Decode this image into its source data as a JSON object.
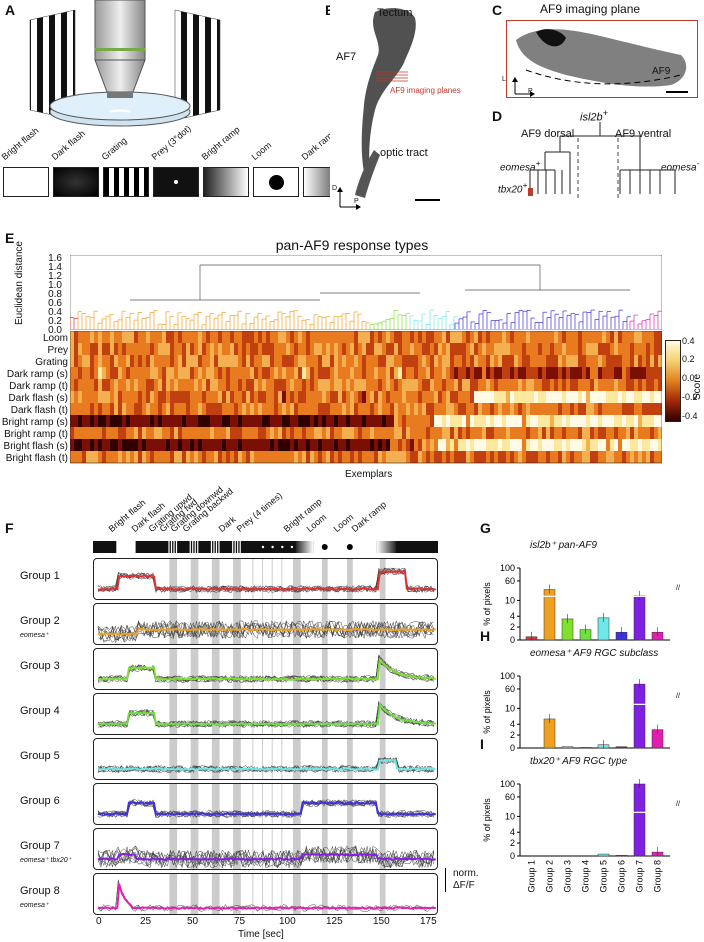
{
  "panels": {
    "A": {
      "label": "A",
      "stimuli": [
        "Bright flash",
        "Dark flash",
        "Grating",
        "Prey (3°dot)",
        "Bright ramp",
        "Loom",
        "Dark ramp"
      ]
    },
    "B": {
      "label": "B",
      "tectum": "Tectum",
      "af7": "AF7",
      "imaging": "AF9 imaging planes",
      "optic": "optic tract",
      "axis_d": "D",
      "axis_p": "P"
    },
    "C": {
      "label": "C",
      "title": "AF9 imaging plane",
      "af9": "AF9",
      "axis_l": "L",
      "axis_p": "P"
    },
    "D": {
      "label": "D",
      "top": "isl2b",
      "dorsal": "AF9 dorsal",
      "ventral": "AF9 ventral",
      "eomesa_pos": "eomesa",
      "eomesa_neg": "eomesa",
      "tbx20": "tbx20",
      "plus": "+",
      "minus": "-"
    },
    "E": {
      "label": "E",
      "title": "pan-AF9 response types",
      "ylabel": "Euclidean distance",
      "yticks": [
        "1.6",
        "1.4",
        "1.2",
        "1.0",
        "0.8",
        "0.6",
        "0.4",
        "0.2",
        "0.0"
      ],
      "rows": [
        "Loom",
        "Prey",
        "Grating",
        "Dark ramp (s)",
        "Dark ramp (t)",
        "Dark flash (s)",
        "Dark flash (t)",
        "Bright ramp (s)",
        "Bright ramp (t)",
        "Bright flash (s)",
        "Bright flash (t)"
      ],
      "xlabel": "Exemplars",
      "cbar_label": "Score",
      "cbar_ticks": [
        "0.4",
        "0.2",
        "0.0",
        "-0.2",
        "-0.4"
      ]
    },
    "F": {
      "label": "F",
      "stim_labels": [
        "Bright flash",
        "Dark flash",
        "Grating upwd",
        "Grating fwd",
        "Grating downwd",
        "Grating backwd",
        "Dark",
        "Prey (4 times)",
        "Bright ramp",
        "Loom",
        "Loom",
        "Dark ramp"
      ],
      "groups": [
        {
          "name": "Group 1",
          "sub": "",
          "color": "#e03030"
        },
        {
          "name": "Group 2",
          "sub": "eomesa⁺",
          "color": "#f0a020"
        },
        {
          "name": "Group 3",
          "sub": "",
          "color": "#80e030"
        },
        {
          "name": "Group 4",
          "sub": "",
          "color": "#70e040"
        },
        {
          "name": "Group 5",
          "sub": "",
          "color": "#70e8e8"
        },
        {
          "name": "Group 6",
          "sub": "",
          "color": "#4030e0"
        },
        {
          "name": "Group 7",
          "sub": "eomesa⁺ tbx20⁺",
          "color": "#8020e0"
        },
        {
          "name": "Group 8",
          "sub": "eomesa⁺",
          "color": "#e020b0"
        }
      ],
      "xticks": [
        "0",
        "25",
        "50",
        "75",
        "100",
        "125",
        "150",
        "175"
      ],
      "xlabel": "Time [sec]",
      "norm_label": "norm.",
      "df_label": "ΔF/F"
    },
    "G": {
      "label": "G",
      "title": "isl2b⁺ pan-AF9"
    },
    "H": {
      "label": "H",
      "title": "eomesa⁺ AF9 RGC subclass"
    },
    "I": {
      "label": "I",
      "title": "tbx20⁺ AF9 RGC type"
    }
  },
  "bar_ylabel": "% of pixels",
  "bar_yticks": [
    "100",
    "60",
    "10",
    "4",
    "2",
    "0"
  ],
  "bar_xcats": [
    "Group 1",
    "Group 2",
    "Group 3",
    "Group 4",
    "Group 5",
    "Group 6",
    "Group 7",
    "Group 8"
  ],
  "chart_data": [
    {
      "type": "bar",
      "title": "isl2b+ pan-AF9",
      "categories": [
        "Group 1",
        "Group 2",
        "Group 3",
        "Group 4",
        "Group 5",
        "Group 6",
        "Group 7",
        "Group 8"
      ],
      "values": [
        0.5,
        38,
        3.5,
        1.6,
        3.7,
        1.2,
        22,
        1.2
      ],
      "ylabel": "% of pixels",
      "ylim": [
        0,
        100
      ]
    },
    {
      "type": "bar",
      "title": "eomesa+ AF9 RGC subclass",
      "categories": [
        "Group 1",
        "Group 2",
        "Group 3",
        "Group 4",
        "Group 5",
        "Group 6",
        "Group 7",
        "Group 8"
      ],
      "values": [
        0,
        6,
        0.2,
        0.1,
        0.5,
        0.2,
        75,
        3
      ],
      "ylabel": "% of pixels",
      "ylim": [
        0,
        100
      ]
    },
    {
      "type": "bar",
      "title": "tbx20+ AF9 RGC type",
      "categories": [
        "Group 1",
        "Group 2",
        "Group 3",
        "Group 4",
        "Group 5",
        "Group 6",
        "Group 7",
        "Group 8"
      ],
      "values": [
        0,
        0,
        0,
        0,
        0.3,
        0.1,
        100,
        0.6
      ],
      "ylabel": "% of pixels",
      "ylim": [
        0,
        100
      ]
    }
  ],
  "colors": {
    "g1": "#e03030",
    "g2": "#f0a020",
    "g3": "#80e030",
    "g5": "#70e8e8",
    "g6": "#4030e0",
    "g7": "#8020e0",
    "g8": "#e020b0"
  }
}
